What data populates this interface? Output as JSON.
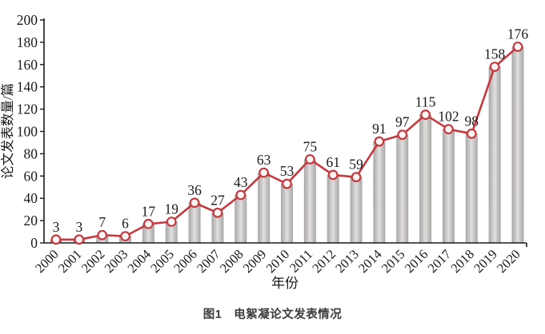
{
  "caption": {
    "text": "图1　电絮凝论文发表情况"
  },
  "chart_data": {
    "type": "bar+line",
    "title": "",
    "xlabel": "年份",
    "ylabel": "论文发表数量/篇",
    "categories": [
      "2000",
      "2001",
      "2002",
      "2003",
      "2004",
      "2005",
      "2006",
      "2007",
      "2008",
      "2009",
      "2010",
      "2011",
      "2012",
      "2013",
      "2014",
      "2015",
      "2016",
      "2017",
      "2018",
      "2019",
      "2020"
    ],
    "values": [
      3,
      3,
      7,
      6,
      17,
      19,
      36,
      27,
      43,
      63,
      53,
      75,
      61,
      59,
      91,
      97,
      115,
      102,
      98,
      158,
      176
    ],
    "ylim": [
      0,
      200
    ],
    "y_ticks": [
      0,
      20,
      40,
      60,
      80,
      100,
      120,
      140,
      160,
      180,
      200
    ],
    "legend": [],
    "grid": "off",
    "colors": {
      "bar_edge": "#a9a6a6",
      "bar_mid": "#e2e0e0",
      "line": "#c5393f",
      "marker_fill": "#fdf6f4",
      "axis": "#1a1a1a",
      "label_text": "#1a1a1a"
    }
  }
}
